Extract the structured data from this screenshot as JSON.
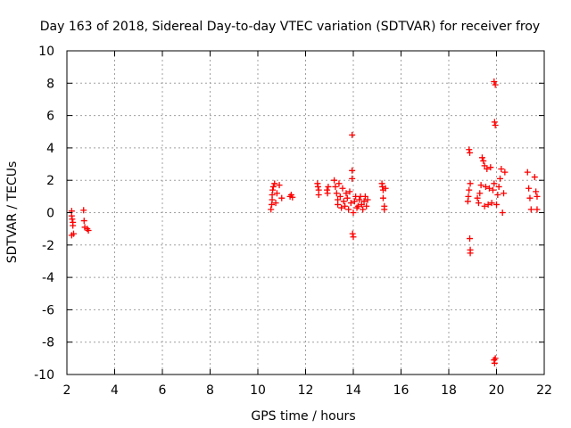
{
  "chart_data": {
    "type": "scatter",
    "title": "Day 163 of 2018, Sidereal Day-to-day VTEC variation (SDTVAR) for receiver froy",
    "xlabel": "GPS time / hours",
    "ylabel": "SDTVAR / TECUs",
    "xlim": [
      2,
      22
    ],
    "ylim": [
      -10,
      10
    ],
    "xticks": [
      2,
      4,
      6,
      8,
      10,
      12,
      14,
      16,
      18,
      20,
      22
    ],
    "yticks": [
      -10,
      -8,
      -6,
      -4,
      -2,
      0,
      2,
      4,
      6,
      8,
      10
    ],
    "grid": true,
    "marker": "+",
    "series": [
      {
        "name": "SDTVAR",
        "color": "#ff0000",
        "points": [
          [
            2.2,
            0.1
          ],
          [
            2.2,
            -0.2
          ],
          [
            2.22,
            -0.4
          ],
          [
            2.25,
            -0.6
          ],
          [
            2.25,
            -0.8
          ],
          [
            2.2,
            -1.4
          ],
          [
            2.28,
            -1.3
          ],
          [
            2.7,
            0.15
          ],
          [
            2.72,
            -0.5
          ],
          [
            2.75,
            -0.9
          ],
          [
            2.85,
            -1.0
          ],
          [
            2.9,
            -1.1
          ],
          [
            10.55,
            0.2
          ],
          [
            10.58,
            0.5
          ],
          [
            10.6,
            0.8
          ],
          [
            10.6,
            1.1
          ],
          [
            10.62,
            1.4
          ],
          [
            10.65,
            1.6
          ],
          [
            10.7,
            1.8
          ],
          [
            10.75,
            0.6
          ],
          [
            10.8,
            1.2
          ],
          [
            10.9,
            1.7
          ],
          [
            11.0,
            0.9
          ],
          [
            11.35,
            1.0
          ],
          [
            11.4,
            1.1
          ],
          [
            11.45,
            0.95
          ],
          [
            12.5,
            1.8
          ],
          [
            12.52,
            1.6
          ],
          [
            12.55,
            1.4
          ],
          [
            12.55,
            1.1
          ],
          [
            12.9,
            1.4
          ],
          [
            12.92,
            1.2
          ],
          [
            12.95,
            1.6
          ],
          [
            13.2,
            2.0
          ],
          [
            13.25,
            1.6
          ],
          [
            13.3,
            1.2
          ],
          [
            13.35,
            0.8
          ],
          [
            13.35,
            0.5
          ],
          [
            13.4,
            1.8
          ],
          [
            13.45,
            1.0
          ],
          [
            13.5,
            0.3
          ],
          [
            13.55,
            1.5
          ],
          [
            13.6,
            0.7
          ],
          [
            13.65,
            0.4
          ],
          [
            13.7,
            1.2
          ],
          [
            13.75,
            0.9
          ],
          [
            13.8,
            0.2
          ],
          [
            13.85,
            1.3
          ],
          [
            13.9,
            0.6
          ],
          [
            13.95,
            2.6
          ],
          [
            13.95,
            4.8
          ],
          [
            13.95,
            2.1
          ],
          [
            13.97,
            -1.3
          ],
          [
            14.0,
            -1.5
          ],
          [
            14.0,
            0.0
          ],
          [
            14.05,
            0.7
          ],
          [
            14.1,
            1.0
          ],
          [
            14.15,
            0.3
          ],
          [
            14.2,
            0.4
          ],
          [
            14.25,
            0.8
          ],
          [
            14.3,
            1.0
          ],
          [
            14.35,
            0.5
          ],
          [
            14.4,
            0.2
          ],
          [
            14.45,
            0.7
          ],
          [
            14.5,
            1.0
          ],
          [
            14.55,
            0.4
          ],
          [
            14.6,
            0.8
          ],
          [
            15.2,
            1.8
          ],
          [
            15.22,
            1.6
          ],
          [
            15.25,
            1.4
          ],
          [
            15.25,
            0.9
          ],
          [
            15.3,
            0.4
          ],
          [
            15.3,
            0.2
          ],
          [
            15.35,
            1.5
          ],
          [
            18.8,
            0.7
          ],
          [
            18.82,
            1.0
          ],
          [
            18.85,
            1.4
          ],
          [
            18.9,
            1.8
          ],
          [
            18.85,
            3.9
          ],
          [
            18.88,
            3.7
          ],
          [
            18.88,
            -1.6
          ],
          [
            18.9,
            -2.3
          ],
          [
            18.9,
            -2.5
          ],
          [
            19.2,
            0.9
          ],
          [
            19.25,
            0.6
          ],
          [
            19.3,
            1.2
          ],
          [
            19.35,
            1.7
          ],
          [
            19.4,
            3.4
          ],
          [
            19.45,
            3.2
          ],
          [
            19.5,
            2.9
          ],
          [
            19.5,
            0.4
          ],
          [
            19.55,
            1.6
          ],
          [
            19.6,
            2.7
          ],
          [
            19.65,
            0.5
          ],
          [
            19.7,
            1.5
          ],
          [
            19.75,
            2.8
          ],
          [
            19.8,
            0.6
          ],
          [
            19.85,
            1.4
          ],
          [
            19.9,
            1.8
          ],
          [
            19.9,
            8.1
          ],
          [
            19.95,
            7.9
          ],
          [
            19.92,
            5.6
          ],
          [
            19.95,
            5.4
          ],
          [
            19.9,
            -9.1
          ],
          [
            19.92,
            -9.3
          ],
          [
            19.95,
            -9.0
          ],
          [
            20.0,
            0.5
          ],
          [
            20.05,
            1.1
          ],
          [
            20.1,
            1.6
          ],
          [
            20.15,
            2.1
          ],
          [
            20.2,
            2.7
          ],
          [
            20.25,
            0.0
          ],
          [
            20.3,
            1.2
          ],
          [
            20.35,
            2.5
          ],
          [
            21.3,
            2.5
          ],
          [
            21.35,
            1.5
          ],
          [
            21.4,
            0.9
          ],
          [
            21.45,
            0.2
          ],
          [
            21.6,
            2.2
          ],
          [
            21.65,
            1.3
          ],
          [
            21.7,
            1.0
          ],
          [
            21.7,
            0.2
          ]
        ]
      }
    ]
  }
}
